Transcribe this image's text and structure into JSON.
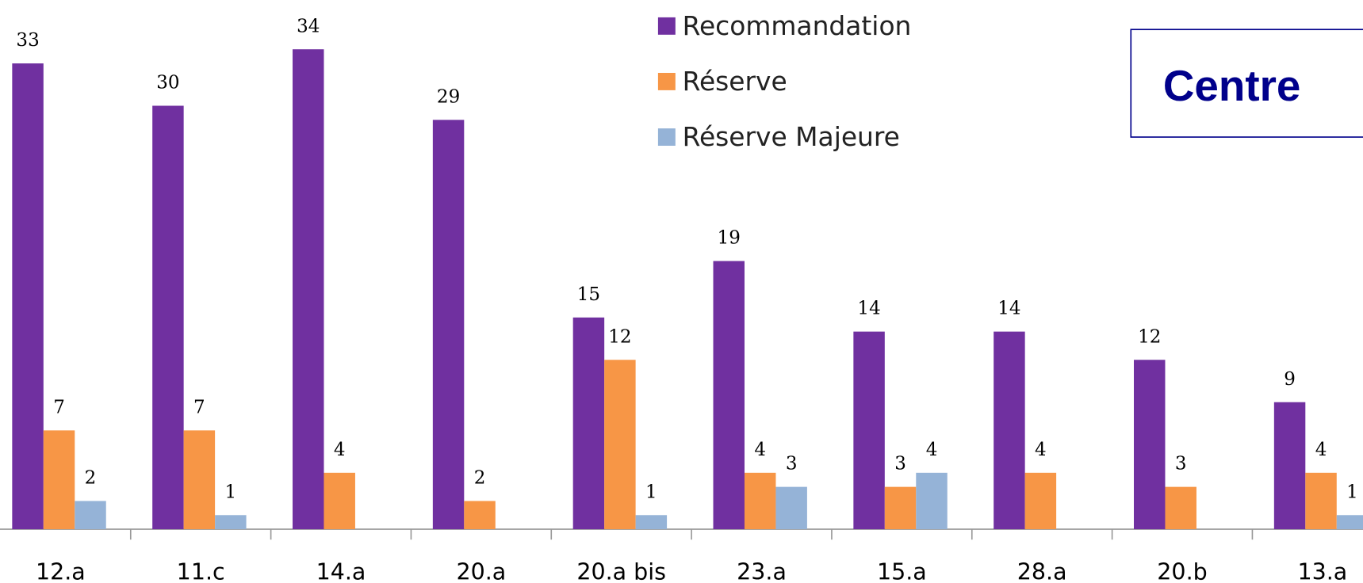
{
  "chart_data": {
    "type": "bar",
    "title": "Centre",
    "categories": [
      "12.a",
      "11.c",
      "14.a",
      "20.a",
      "20.a bis",
      "23.a",
      "15.a",
      "28.a",
      "20.b",
      "13.a"
    ],
    "series": [
      {
        "name": "Recommandation",
        "color": "#7030a0",
        "values": [
          33,
          30,
          34,
          29,
          15,
          19,
          14,
          14,
          12,
          9
        ]
      },
      {
        "name": "Réserve",
        "color": "#f79646",
        "values": [
          7,
          7,
          4,
          2,
          12,
          4,
          3,
          4,
          3,
          4
        ]
      },
      {
        "name": "Réserve Majeure",
        "color": "#95b3d7",
        "values": [
          2,
          1,
          null,
          null,
          1,
          3,
          4,
          null,
          null,
          1
        ]
      }
    ],
    "ylim": [
      0,
      37
    ]
  }
}
